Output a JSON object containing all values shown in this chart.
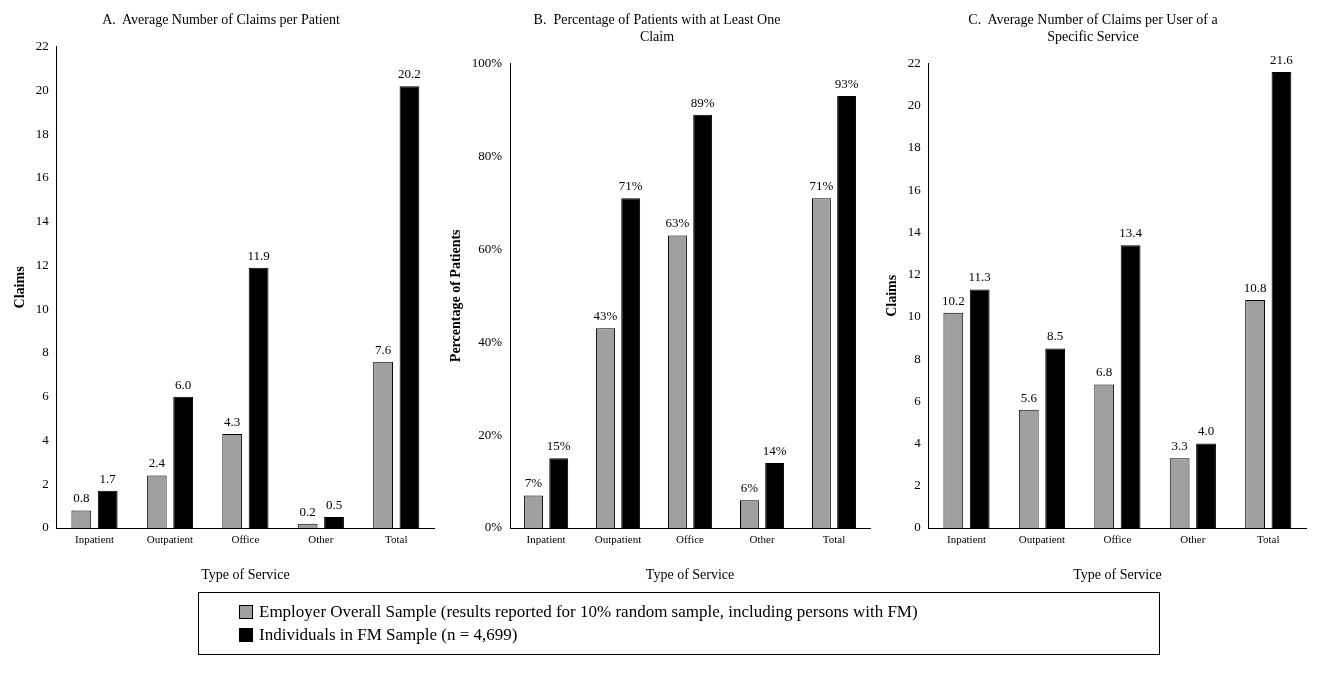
{
  "chart_data": [
    {
      "type": "bar",
      "title": "A.  Average Number of Claims per Patient",
      "xlabel": "Type of Service",
      "ylabel": "Claims",
      "categories": [
        "Inpatient",
        "Outpatient",
        "Office",
        "Other",
        "Total"
      ],
      "series": [
        {
          "name": "Employer Overall Sample (results reported for 10% random sample, including persons with FM)",
          "color": "#a0a0a0",
          "values": [
            0.8,
            2.4,
            4.3,
            0.2,
            7.6
          ],
          "value_labels": [
            "0.8",
            "2.4",
            "4.3",
            "0.2",
            "7.6"
          ]
        },
        {
          "name": "Individuals in FM Sample (n = 4,699)",
          "color": "#000000",
          "values": [
            1.7,
            6.0,
            11.9,
            0.5,
            20.2
          ],
          "value_labels": [
            "1.7",
            "6.0",
            "11.9",
            "0.5",
            "20.2"
          ]
        }
      ],
      "ylim": [
        0,
        22
      ],
      "yticks": [
        0,
        2,
        4,
        6,
        8,
        10,
        12,
        14,
        16,
        18,
        20,
        22
      ],
      "grid": false,
      "legend": "bottom"
    },
    {
      "type": "bar",
      "title": "B.  Percentage of Patients with at Least One Claim",
      "xlabel": "Type of Service",
      "ylabel": "Percentage of Patients",
      "categories": [
        "Inpatient",
        "Outpatient",
        "Office",
        "Other",
        "Total"
      ],
      "series": [
        {
          "color": "#a0a0a0",
          "values": [
            7,
            43,
            63,
            6,
            71
          ],
          "value_labels": [
            "7%",
            "43%",
            "63%",
            "6%",
            "71%"
          ]
        },
        {
          "color": "#000000",
          "values": [
            15,
            71,
            89,
            14,
            93
          ],
          "value_labels": [
            "15%",
            "71%",
            "89%",
            "14%",
            "93%"
          ]
        }
      ],
      "ylim": [
        0,
        100
      ],
      "yticks": [
        {
          "value": 0,
          "label": "0%"
        },
        {
          "value": 20,
          "label": "20%"
        },
        {
          "value": 40,
          "label": "40%"
        },
        {
          "value": 60,
          "label": "60%"
        },
        {
          "value": 80,
          "label": "80%"
        },
        {
          "value": 100,
          "label": "100%"
        }
      ],
      "grid": false
    },
    {
      "type": "bar",
      "title": "C.  Average Number of Claims per User of a Specific Service",
      "xlabel": "Type of Service",
      "ylabel": "Claims",
      "categories": [
        "Inpatient",
        "Outpatient",
        "Office",
        "Other",
        "Total"
      ],
      "series": [
        {
          "color": "#a0a0a0",
          "values": [
            10.2,
            5.6,
            6.8,
            3.3,
            10.8
          ],
          "value_labels": [
            "10.2",
            "5.6",
            "6.8",
            "3.3",
            "10.8"
          ]
        },
        {
          "color": "#000000",
          "values": [
            11.3,
            8.5,
            13.4,
            4.0,
            21.6
          ],
          "value_labels": [
            "11.3",
            "8.5",
            "13.4",
            "4.0",
            "21.6"
          ]
        }
      ],
      "ylim": [
        0,
        22
      ],
      "yticks": [
        0,
        2,
        4,
        6,
        8,
        10,
        12,
        14,
        16,
        18,
        20,
        22
      ],
      "grid": false
    }
  ]
}
